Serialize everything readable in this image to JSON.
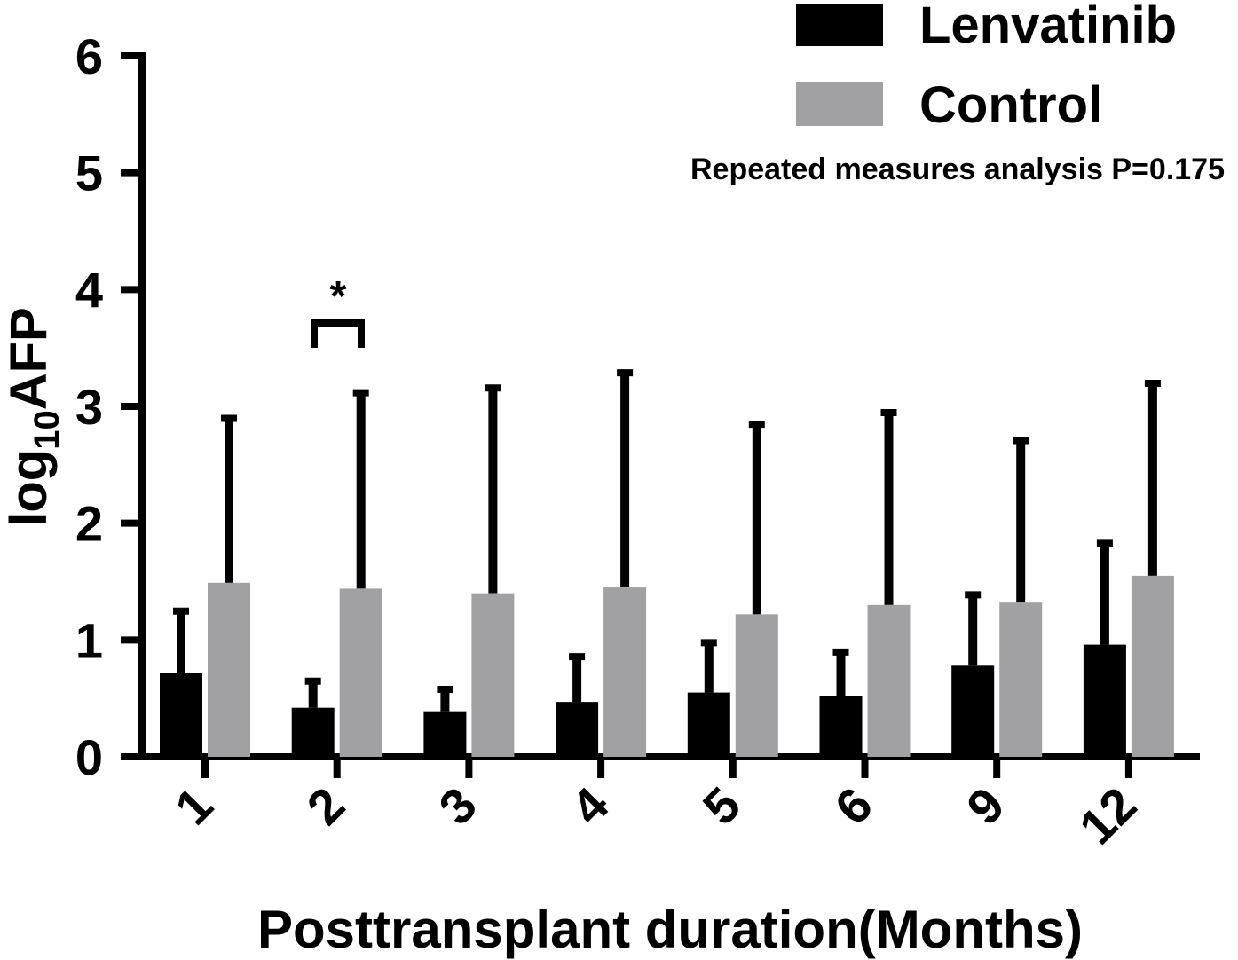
{
  "chart_data": {
    "type": "bar",
    "title": "",
    "xlabel": "Posttransplant duration(Months)",
    "ylabel_base": "log",
    "ylabel_sub": "10",
    "ylabel_main": "AFP",
    "ylim": [
      0,
      6
    ],
    "yticks": [
      "0",
      "1",
      "2",
      "3",
      "4",
      "5",
      "6"
    ],
    "categories": [
      "1",
      "2",
      "3",
      "4",
      "5",
      "6",
      "9",
      "12"
    ],
    "series": [
      {
        "name": "Lenvatinib",
        "color": "#000000",
        "values": [
          0.72,
          0.42,
          0.39,
          0.47,
          0.55,
          0.52,
          0.78,
          0.96
        ],
        "error_upper": [
          1.27,
          0.67,
          0.6,
          0.88,
          1.0,
          0.92,
          1.41,
          1.85
        ]
      },
      {
        "name": "Control",
        "color": "#a1a1a4",
        "values": [
          1.49,
          1.44,
          1.4,
          1.45,
          1.22,
          1.3,
          1.32,
          1.55
        ],
        "error_upper": [
          2.92,
          3.14,
          3.18,
          3.31,
          2.87,
          2.97,
          2.73,
          3.22
        ]
      }
    ],
    "annotation": "Repeated measures analysis P=0.175",
    "significance": {
      "category": "2",
      "symbol": "*"
    },
    "legend_position": "top-right"
  }
}
